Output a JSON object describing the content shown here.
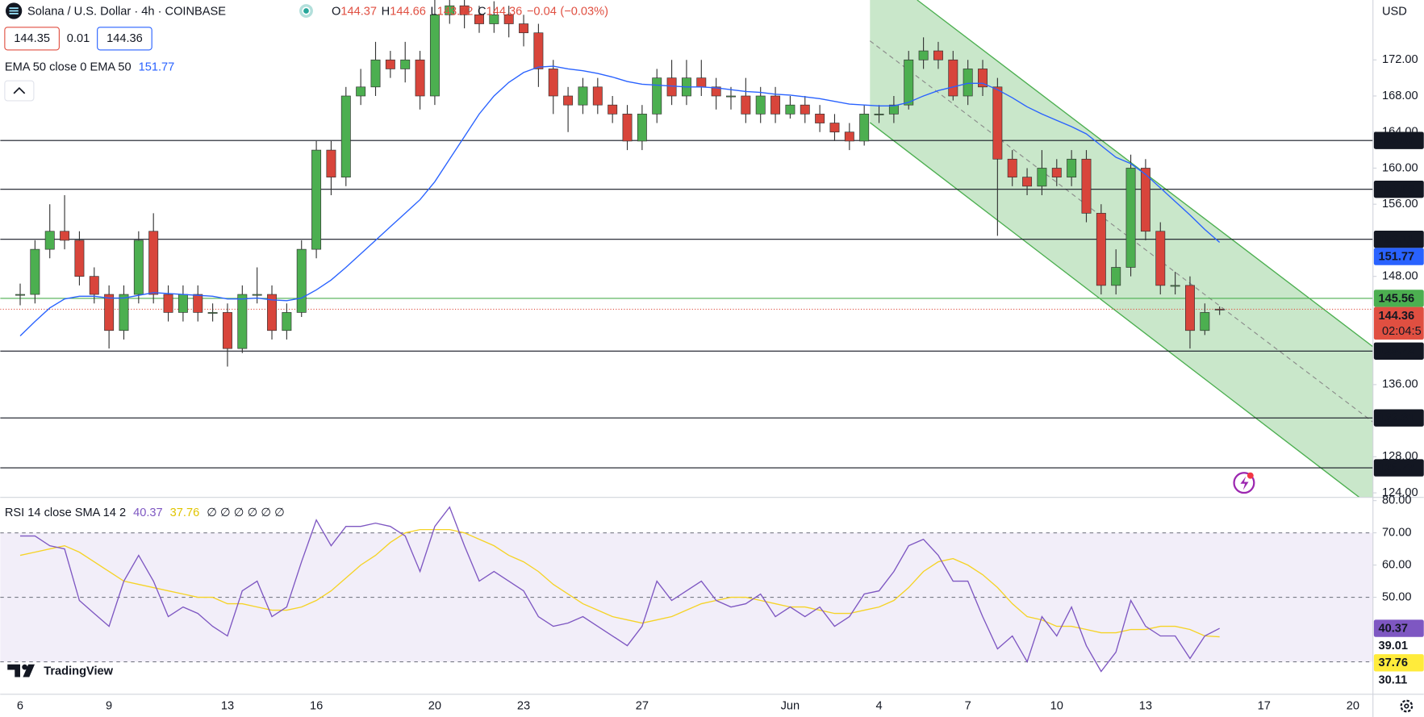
{
  "chart_data": [
    {
      "type": "candlestick",
      "title": "Solana / U.S. Dollar · 4h · COINBASE",
      "ohlc_letters": [
        "O",
        "H",
        "L",
        "C"
      ],
      "change": {
        "value": -0.04,
        "label": "−0.04"
      },
      "change_percent": {
        "value": -0.03,
        "label": "(−0.03%)"
      },
      "bid": 144.35,
      "spread": 0.01,
      "ask": 144.36,
      "countdown": "02:04:5",
      "y_axis_label": "USD",
      "branding": "TradingView",
      "categories": [
        "6",
        null,
        null,
        null,
        null,
        null,
        "9",
        null,
        null,
        null,
        null,
        null,
        null,
        null,
        "13",
        null,
        null,
        null,
        null,
        null,
        "16",
        null,
        null,
        null,
        null,
        null,
        null,
        null,
        "20",
        null,
        null,
        null,
        null,
        null,
        "23",
        null,
        null,
        null,
        null,
        null,
        null,
        null,
        "27",
        null,
        null,
        null,
        null,
        null,
        null,
        null,
        null,
        null,
        "Jun",
        null,
        null,
        null,
        null,
        null,
        "4",
        null,
        null,
        null,
        null,
        null,
        "7",
        null,
        null,
        null,
        null,
        null,
        "10",
        null,
        null,
        null,
        null,
        null,
        "13",
        null,
        null,
        null,
        null,
        null,
        null,
        null,
        "17",
        null,
        null,
        null,
        null,
        null,
        "20"
      ],
      "open": [
        146,
        146,
        151,
        153,
        152,
        148,
        146,
        142,
        146,
        153,
        146,
        144,
        146,
        144,
        144,
        140,
        146,
        146,
        142,
        144,
        151,
        162,
        159,
        168,
        169,
        172,
        171,
        172,
        168,
        177,
        178,
        177,
        176,
        177,
        176,
        175,
        171,
        168,
        167,
        169,
        167,
        166,
        163,
        166,
        170,
        168,
        170,
        169,
        168,
        168,
        166,
        168,
        166,
        167,
        166,
        165,
        164,
        163,
        166,
        166,
        167,
        172,
        173,
        172,
        168,
        171,
        169,
        161,
        159,
        158,
        160,
        159,
        161,
        155,
        147,
        149,
        160,
        153,
        147,
        147,
        142,
        144.37,
        null,
        null,
        null,
        null,
        null,
        null,
        null,
        null,
        null
      ],
      "high": [
        147.2,
        152,
        156,
        157,
        153,
        149,
        147,
        147,
        153,
        155,
        147,
        147,
        147,
        145,
        145,
        147,
        149,
        147,
        145,
        152,
        163,
        163,
        169,
        171,
        174,
        173,
        174,
        173,
        179,
        179.5,
        179,
        178,
        178.5,
        178,
        177,
        176,
        172,
        169,
        170,
        170,
        168,
        167,
        167,
        171,
        172,
        172,
        172,
        170,
        169,
        170,
        169,
        169,
        168,
        168,
        167,
        166,
        165,
        167,
        167,
        168,
        173,
        174.5,
        174,
        173,
        172,
        172,
        170,
        162,
        160,
        162,
        161,
        162,
        162,
        156,
        151,
        161.5,
        161,
        154,
        148.5,
        148,
        145,
        144.66,
        null,
        null,
        null,
        null,
        null,
        null,
        null,
        null,
        null
      ],
      "low": [
        144.8,
        145,
        150,
        151,
        147,
        145,
        140,
        141,
        145,
        145,
        143,
        143,
        143,
        143,
        138,
        139.5,
        145,
        141,
        141,
        143.5,
        150,
        157,
        158,
        167,
        168,
        170,
        169.5,
        166.5,
        167,
        176,
        175.5,
        175,
        175,
        174.5,
        173.5,
        169,
        166,
        164,
        166,
        166,
        165,
        162,
        162,
        165,
        167,
        167,
        168,
        166.5,
        166.5,
        165,
        165,
        165,
        165.5,
        165,
        164,
        163,
        162,
        162.5,
        165,
        165,
        166.5,
        171,
        171,
        167.5,
        167,
        168,
        152.5,
        158,
        157,
        157,
        158,
        158,
        154,
        146,
        146,
        148,
        152,
        146,
        146,
        140,
        141.5,
        143.72,
        null,
        null,
        null,
        null,
        null,
        null,
        null,
        null,
        null
      ],
      "close": [
        146,
        151,
        153,
        152,
        148,
        146,
        142,
        146,
        152,
        146,
        144,
        146,
        144,
        144,
        140,
        146,
        146,
        142,
        144,
        151,
        162,
        159,
        168,
        169,
        172,
        171,
        172,
        168,
        177,
        178,
        177,
        176,
        177,
        176,
        175,
        171,
        168,
        167,
        169,
        167,
        166,
        163,
        166,
        170,
        168,
        170,
        169,
        168,
        168,
        166,
        168,
        166,
        167,
        166,
        165,
        164,
        163,
        166,
        166,
        167,
        172,
        173,
        172,
        168,
        171,
        169,
        161,
        159,
        158,
        160,
        159,
        161,
        155,
        147,
        149,
        160,
        153,
        147,
        147,
        142,
        144,
        144.36,
        null,
        null,
        null,
        null,
        null,
        null,
        null,
        null,
        null
      ],
      "up_color": "#4caf50",
      "down_color": "#d8453b",
      "series": [
        {
          "name": "EMA 50 close 0 EMA 50",
          "color": "#2962ff",
          "values": [
            141.4,
            143,
            144.5,
            145.5,
            145.8,
            145.8,
            145.6,
            145.6,
            145.9,
            146.2,
            146.1,
            146,
            145.9,
            145.8,
            145.5,
            145.5,
            145.6,
            145.4,
            145.3,
            145.6,
            146.5,
            147.6,
            149,
            150.5,
            152,
            153.5,
            155,
            156.5,
            158.5,
            161,
            163.5,
            166,
            168,
            169.5,
            170.6,
            171.2,
            171.3,
            171,
            170.8,
            170.5,
            170.1,
            169.6,
            169.3,
            169.2,
            169.1,
            169,
            169,
            168.9,
            168.7,
            168.5,
            168.4,
            168.2,
            168.1,
            167.9,
            167.7,
            167.4,
            167.1,
            167,
            166.9,
            166.9,
            167.3,
            168,
            168.6,
            169,
            169.4,
            169.4,
            168.7,
            167.8,
            166.8,
            166,
            165.3,
            164.6,
            163.8,
            162.5,
            161.2,
            160.5,
            159.3,
            157.8,
            156.3,
            154.8,
            153.2,
            151.77,
            null,
            null,
            null,
            null,
            null,
            null,
            null,
            null,
            null
          ]
        }
      ],
      "levels": [
        {
          "value": 163.07,
          "color": "#131722"
        },
        {
          "value": 157.66,
          "color": "#131722"
        },
        {
          "value": 152.11,
          "color": "#131722"
        },
        {
          "value": 145.56,
          "color": "#4caf50"
        },
        {
          "value": 139.72,
          "color": "#131722"
        },
        {
          "value": 132.31,
          "color": "#131722"
        },
        {
          "value": 126.77,
          "color": "#131722"
        }
      ],
      "ylim": [
        123.5,
        178.64
      ],
      "yticks": [
        {
          "value": 172,
          "label": "172.00"
        },
        {
          "value": 168,
          "label": "168.00"
        },
        {
          "value": 164,
          "label": "164.00"
        },
        {
          "value": 160,
          "label": "160.00"
        },
        {
          "value": 156,
          "label": "156.00"
        },
        {
          "value": 148,
          "label": "148.00"
        },
        {
          "value": 136,
          "label": "136.00"
        },
        {
          "value": 128,
          "label": "128.00"
        },
        {
          "value": 124,
          "label": "124.00"
        }
      ],
      "grid": false
    },
    {
      "type": "line",
      "title": "RSI 14 close SMA 14 2",
      "placeholders": "∅ ∅ ∅ ∅ ∅ ∅",
      "series": [
        {
          "color": "#7e57c2",
          "values": [
            69,
            69,
            66,
            65,
            49,
            45,
            41,
            55,
            63,
            55,
            44,
            47,
            45,
            41,
            38,
            52,
            55,
            44,
            47,
            61,
            74,
            66,
            72,
            72,
            73,
            72,
            69,
            58,
            72,
            78,
            66,
            55,
            58,
            55,
            52,
            44,
            41,
            42,
            44,
            41,
            38,
            35,
            41,
            55,
            49,
            52,
            55,
            49,
            47,
            48,
            51,
            44,
            47,
            44,
            47,
            41,
            44,
            51,
            52,
            58,
            66,
            68,
            63,
            55,
            55,
            44,
            34,
            38,
            30,
            44,
            38,
            47,
            35,
            27,
            33,
            49,
            41,
            38,
            38,
            31,
            38,
            40.37,
            null,
            null,
            null,
            null,
            null,
            null,
            null,
            null,
            null
          ]
        },
        {
          "color": "#f5d327",
          "values": [
            63,
            64,
            65,
            66,
            64,
            61,
            58,
            55,
            54,
            53,
            52,
            51,
            50,
            50,
            48,
            48,
            47,
            46,
            46,
            47,
            49,
            52,
            56,
            60,
            63,
            67,
            70,
            71,
            71,
            71,
            70,
            68,
            66,
            63,
            61,
            58,
            54,
            51,
            48,
            46,
            44,
            43,
            42,
            43,
            44,
            46,
            48,
            49,
            50,
            50,
            49,
            48,
            47,
            47,
            46,
            45,
            45,
            46,
            47,
            49,
            53,
            58,
            61,
            62,
            60,
            57,
            53,
            48,
            44,
            43,
            41,
            41,
            40,
            39,
            39,
            40,
            40,
            41,
            41,
            40,
            38,
            37.76,
            null,
            null,
            null,
            null,
            null,
            null,
            null,
            null,
            null
          ]
        }
      ],
      "band": [
        30,
        70
      ],
      "levels": [
        70,
        50,
        30
      ],
      "axis_values": [
        39.01,
        30.11
      ],
      "ylim": [
        19.9,
        81
      ],
      "yticks": [
        {
          "value": 80,
          "label": "80.00"
        },
        {
          "value": 70,
          "label": "70.00"
        },
        {
          "value": 60,
          "label": "60.00"
        },
        {
          "value": 50,
          "label": "50.00"
        }
      ],
      "grid": false
    }
  ]
}
